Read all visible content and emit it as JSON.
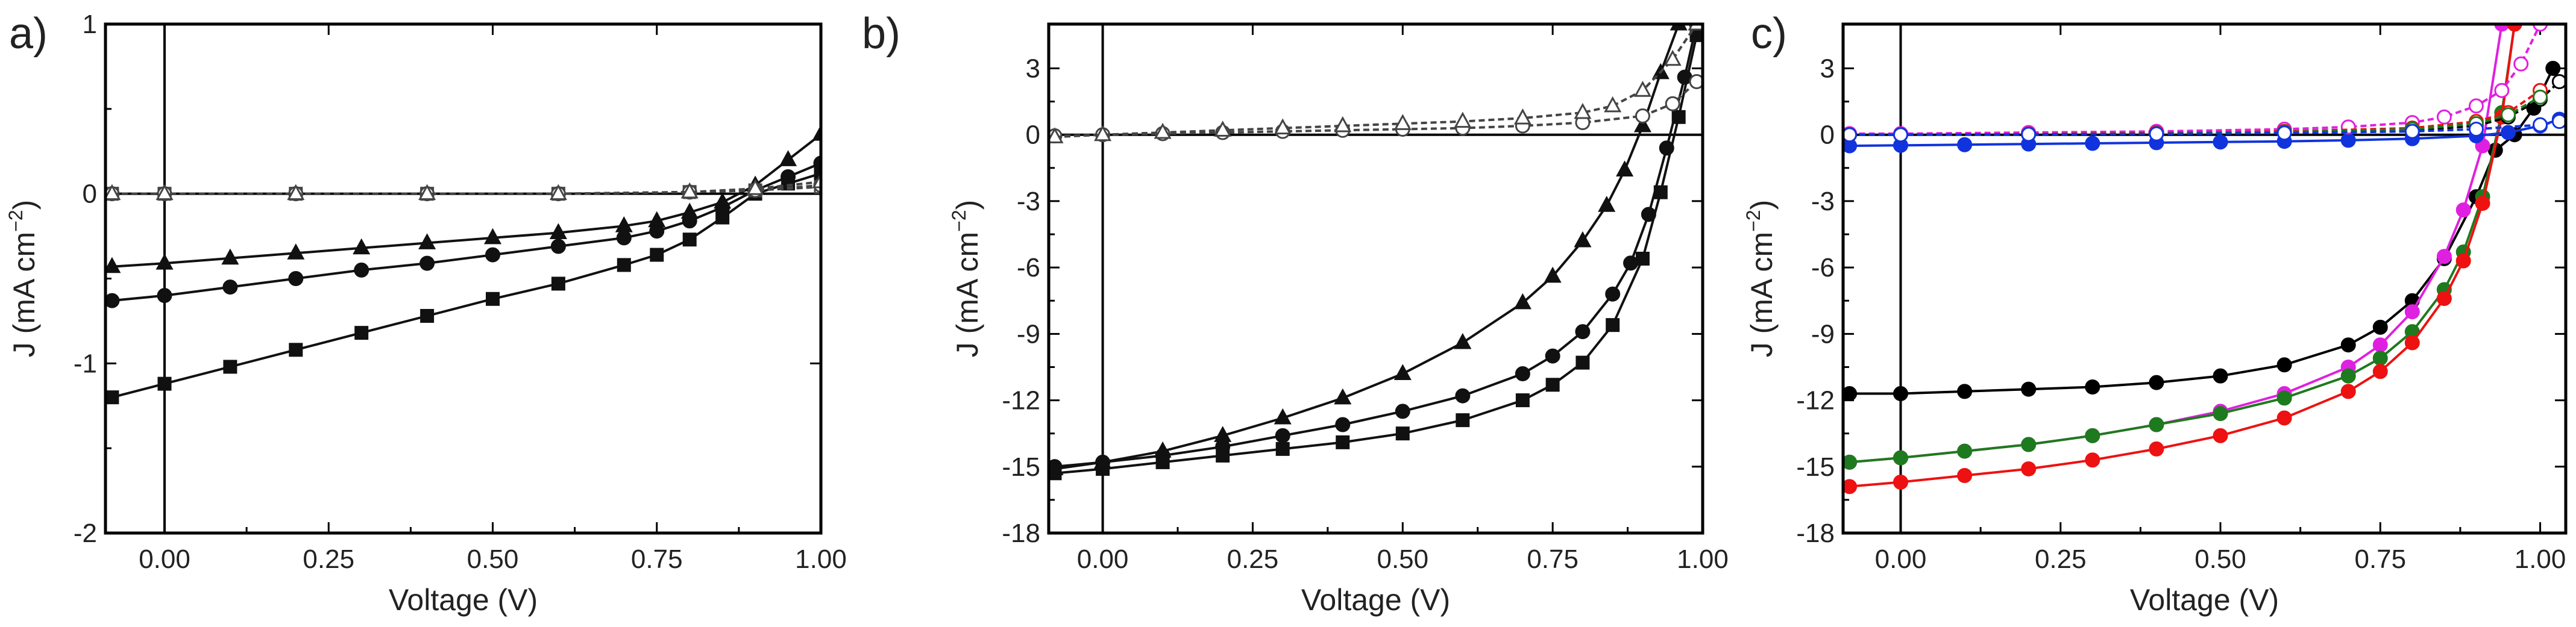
{
  "chart_data": [
    {
      "type": "line",
      "panel_label": "a)",
      "xlabel": "Voltage (V)",
      "ylabel": "J (mA cm",
      "ylabel_sup": "−2",
      "ylabel_close": ")",
      "xlim": [
        -0.09,
        1.0
      ],
      "ylim": [
        -2,
        1
      ],
      "xticks": [
        0.0,
        0.25,
        0.5,
        0.75,
        1.0
      ],
      "xtick_labels": [
        "0.00",
        "0.25",
        "0.50",
        "0.75",
        "1.00"
      ],
      "yticks": [
        -2,
        -1,
        0,
        1
      ],
      "ytick_labels": [
        "-2",
        "-1",
        "0",
        "1"
      ],
      "series": [
        {
          "name": "square-light",
          "marker": "square",
          "filled": true,
          "color": "#111111",
          "x": [
            -0.08,
            0.0,
            0.1,
            0.2,
            0.3,
            0.4,
            0.5,
            0.6,
            0.7,
            0.75,
            0.8,
            0.85,
            0.9,
            0.95,
            1.0
          ],
          "y": [
            -1.2,
            -1.12,
            -1.02,
            -0.92,
            -0.82,
            -0.72,
            -0.62,
            -0.53,
            -0.42,
            -0.36,
            -0.27,
            -0.14,
            0.0,
            0.06,
            0.12
          ]
        },
        {
          "name": "circle-light",
          "marker": "circle",
          "filled": true,
          "color": "#111111",
          "x": [
            -0.08,
            0.0,
            0.1,
            0.2,
            0.3,
            0.4,
            0.5,
            0.6,
            0.7,
            0.75,
            0.8,
            0.85,
            0.9,
            0.95,
            1.0
          ],
          "y": [
            -0.63,
            -0.6,
            -0.55,
            -0.5,
            -0.45,
            -0.41,
            -0.36,
            -0.31,
            -0.26,
            -0.22,
            -0.16,
            -0.08,
            0.02,
            0.1,
            0.18
          ]
        },
        {
          "name": "triangle-light",
          "marker": "triangle",
          "filled": true,
          "color": "#111111",
          "x": [
            -0.08,
            0.0,
            0.1,
            0.2,
            0.3,
            0.4,
            0.5,
            0.6,
            0.7,
            0.75,
            0.8,
            0.85,
            0.9,
            0.95,
            1.0
          ],
          "y": [
            -0.43,
            -0.41,
            -0.38,
            -0.35,
            -0.32,
            -0.29,
            -0.26,
            -0.23,
            -0.19,
            -0.16,
            -0.11,
            -0.05,
            0.05,
            0.2,
            0.35
          ]
        },
        {
          "name": "square-dark",
          "marker": "square",
          "filled": false,
          "color": "#444444",
          "x": [
            -0.08,
            0.0,
            0.2,
            0.4,
            0.6,
            0.8,
            0.9,
            1.0
          ],
          "y": [
            0.0,
            0.0,
            0.0,
            0.0,
            0.0,
            0.01,
            0.02,
            0.04
          ]
        },
        {
          "name": "circle-dark",
          "marker": "circle",
          "filled": false,
          "color": "#444444",
          "x": [
            -0.08,
            0.0,
            0.2,
            0.4,
            0.6,
            0.8,
            0.9,
            1.0
          ],
          "y": [
            0.0,
            0.0,
            0.0,
            0.0,
            0.0,
            0.01,
            0.02,
            0.05
          ]
        },
        {
          "name": "triangle-dark",
          "marker": "triangle",
          "filled": false,
          "color": "#444444",
          "x": [
            -0.08,
            0.0,
            0.2,
            0.4,
            0.6,
            0.8,
            0.9,
            1.0
          ],
          "y": [
            0.0,
            0.0,
            0.0,
            0.0,
            0.0,
            0.01,
            0.03,
            0.07
          ]
        }
      ]
    },
    {
      "type": "line",
      "panel_label": "b)",
      "xlabel": "Voltage (V)",
      "ylabel": "J (mA cm",
      "ylabel_sup": "−2",
      "ylabel_close": ")",
      "xlim": [
        -0.09,
        1.0
      ],
      "ylim": [
        -18,
        5
      ],
      "xticks": [
        0.0,
        0.25,
        0.5,
        0.75,
        1.0
      ],
      "xtick_labels": [
        "0.00",
        "0.25",
        "0.50",
        "0.75",
        "1.00"
      ],
      "yticks": [
        -18,
        -15,
        -12,
        -9,
        -6,
        -3,
        0,
        3
      ],
      "ytick_labels": [
        "-18",
        "-15",
        "-12",
        "-9",
        "-6",
        "-3",
        "0",
        "3"
      ],
      "series": [
        {
          "name": "square-light",
          "marker": "square",
          "filled": true,
          "color": "#111111",
          "x": [
            -0.08,
            0.0,
            0.1,
            0.2,
            0.3,
            0.4,
            0.5,
            0.6,
            0.7,
            0.75,
            0.8,
            0.85,
            0.9,
            0.93,
            0.96,
            0.99
          ],
          "y": [
            -15.3,
            -15.1,
            -14.8,
            -14.5,
            -14.2,
            -13.9,
            -13.5,
            -12.9,
            -12.0,
            -11.3,
            -10.3,
            -8.6,
            -5.6,
            -2.6,
            0.8,
            4.5
          ]
        },
        {
          "name": "circle-light",
          "marker": "circle",
          "filled": true,
          "color": "#111111",
          "x": [
            -0.08,
            0.0,
            0.1,
            0.2,
            0.3,
            0.4,
            0.5,
            0.6,
            0.7,
            0.75,
            0.8,
            0.85,
            0.88,
            0.91,
            0.94,
            0.97,
            0.99
          ],
          "y": [
            -15.0,
            -14.8,
            -14.5,
            -14.1,
            -13.6,
            -13.1,
            -12.5,
            -11.8,
            -10.8,
            -10.0,
            -8.9,
            -7.2,
            -5.8,
            -3.6,
            -0.6,
            2.6,
            5.0
          ]
        },
        {
          "name": "triangle-light",
          "marker": "triangle",
          "filled": true,
          "color": "#111111",
          "x": [
            -0.08,
            0.0,
            0.1,
            0.2,
            0.3,
            0.4,
            0.5,
            0.6,
            0.7,
            0.75,
            0.8,
            0.84,
            0.87,
            0.9,
            0.93,
            0.96
          ],
          "y": [
            -15.1,
            -14.8,
            -14.3,
            -13.6,
            -12.8,
            -11.9,
            -10.8,
            -9.4,
            -7.6,
            -6.4,
            -4.8,
            -3.2,
            -1.6,
            0.4,
            2.8,
            5.0
          ]
        },
        {
          "name": "circle-dark",
          "marker": "circle",
          "filled": false,
          "color": "#444444",
          "x": [
            -0.08,
            0.0,
            0.1,
            0.2,
            0.3,
            0.4,
            0.5,
            0.6,
            0.7,
            0.8,
            0.9,
            0.95,
            0.99
          ],
          "y": [
            -0.05,
            0.0,
            0.05,
            0.1,
            0.15,
            0.2,
            0.25,
            0.3,
            0.4,
            0.55,
            0.85,
            1.4,
            2.4
          ]
        },
        {
          "name": "triangle-dark",
          "marker": "triangle",
          "filled": false,
          "color": "#444444",
          "x": [
            -0.08,
            0.0,
            0.1,
            0.2,
            0.3,
            0.4,
            0.5,
            0.6,
            0.7,
            0.8,
            0.85,
            0.9,
            0.95,
            0.99
          ],
          "y": [
            -0.1,
            0.0,
            0.1,
            0.2,
            0.3,
            0.4,
            0.5,
            0.6,
            0.75,
            1.0,
            1.3,
            2.0,
            3.4,
            5.0
          ]
        }
      ]
    },
    {
      "type": "line",
      "panel_label": "c)",
      "xlabel": "Voltage (V)",
      "ylabel": "J (mA cm",
      "ylabel_sup": "−2",
      "ylabel_close": ")",
      "xlim": [
        -0.09,
        1.04
      ],
      "ylim": [
        -18,
        5
      ],
      "xticks": [
        0.0,
        0.25,
        0.5,
        0.75,
        1.0
      ],
      "xtick_labels": [
        "0.00",
        "0.25",
        "0.50",
        "0.75",
        "1.00"
      ],
      "yticks": [
        -18,
        -15,
        -12,
        -9,
        -6,
        -3,
        0,
        3
      ],
      "ytick_labels": [
        "-18",
        "-15",
        "-12",
        "-9",
        "-6",
        "-3",
        "0",
        "3"
      ],
      "series": [
        {
          "name": "black-light",
          "marker": "circle",
          "filled": true,
          "color": "#000000",
          "x": [
            -0.08,
            0.0,
            0.1,
            0.2,
            0.3,
            0.4,
            0.5,
            0.6,
            0.7,
            0.75,
            0.8,
            0.85,
            0.9,
            0.93,
            0.96,
            0.99,
            1.02
          ],
          "y": [
            -11.7,
            -11.7,
            -11.6,
            -11.5,
            -11.4,
            -11.2,
            -10.9,
            -10.4,
            -9.5,
            -8.7,
            -7.5,
            -5.6,
            -2.8,
            -0.7,
            0.0,
            1.2,
            3.0
          ]
        },
        {
          "name": "magenta-light",
          "marker": "circle",
          "filled": true,
          "color": "#e020e0",
          "x": [
            -0.08,
            0.0,
            0.1,
            0.2,
            0.3,
            0.4,
            0.5,
            0.6,
            0.7,
            0.75,
            0.8,
            0.85,
            0.88,
            0.91,
            0.94
          ],
          "y": [
            -14.8,
            -14.6,
            -14.3,
            -14.0,
            -13.6,
            -13.1,
            -12.5,
            -11.7,
            -10.5,
            -9.5,
            -8.0,
            -5.5,
            -3.4,
            -0.5,
            5.0
          ]
        },
        {
          "name": "green-light",
          "marker": "circle",
          "filled": true,
          "color": "#1e7a1e",
          "x": [
            -0.08,
            0.0,
            0.1,
            0.2,
            0.3,
            0.4,
            0.5,
            0.6,
            0.7,
            0.75,
            0.8,
            0.85,
            0.88,
            0.91,
            0.94,
            0.96
          ],
          "y": [
            -14.8,
            -14.6,
            -14.3,
            -14.0,
            -13.6,
            -13.1,
            -12.6,
            -11.9,
            -10.9,
            -10.1,
            -8.9,
            -7.0,
            -5.3,
            -2.8,
            1.0,
            5.0
          ]
        },
        {
          "name": "red-light",
          "marker": "circle",
          "filled": true,
          "color": "#ee1111",
          "x": [
            -0.08,
            0.0,
            0.1,
            0.2,
            0.3,
            0.4,
            0.5,
            0.6,
            0.7,
            0.75,
            0.8,
            0.85,
            0.88,
            0.91,
            0.94,
            0.96
          ],
          "y": [
            -15.9,
            -15.7,
            -15.4,
            -15.1,
            -14.7,
            -14.2,
            -13.6,
            -12.8,
            -11.6,
            -10.7,
            -9.4,
            -7.4,
            -5.7,
            -3.1,
            0.8,
            5.0
          ]
        },
        {
          "name": "blue-light",
          "marker": "circle",
          "filled": true,
          "color": "#1133dd",
          "x": [
            -0.08,
            0.0,
            0.1,
            0.2,
            0.3,
            0.4,
            0.5,
            0.6,
            0.7,
            0.8,
            0.9,
            0.95,
            1.0,
            1.03
          ],
          "y": [
            -0.5,
            -0.48,
            -0.45,
            -0.42,
            -0.39,
            -0.36,
            -0.33,
            -0.3,
            -0.25,
            -0.18,
            -0.05,
            0.1,
            0.4,
            0.7
          ]
        },
        {
          "name": "black-dark",
          "marker": "circle",
          "filled": false,
          "color": "#000000",
          "x": [
            -0.08,
            0.0,
            0.2,
            0.4,
            0.6,
            0.8,
            0.9,
            0.95,
            1.0,
            1.03
          ],
          "y": [
            0.0,
            0.0,
            0.02,
            0.05,
            0.1,
            0.2,
            0.4,
            0.8,
            1.6,
            2.4
          ]
        },
        {
          "name": "magenta-dark",
          "marker": "circle",
          "filled": false,
          "color": "#e020e0",
          "x": [
            -0.08,
            0.0,
            0.2,
            0.4,
            0.6,
            0.7,
            0.8,
            0.85,
            0.9,
            0.94,
            0.97,
            1.0
          ],
          "y": [
            0.05,
            0.05,
            0.1,
            0.15,
            0.25,
            0.35,
            0.55,
            0.8,
            1.3,
            2.0,
            3.2,
            5.0
          ]
        },
        {
          "name": "red-dark",
          "marker": "circle",
          "filled": false,
          "color": "#ee1111",
          "x": [
            -0.08,
            0.0,
            0.2,
            0.4,
            0.6,
            0.8,
            0.9,
            0.95,
            1.0
          ],
          "y": [
            0.0,
            0.0,
            0.03,
            0.08,
            0.15,
            0.3,
            0.6,
            1.0,
            2.0
          ]
        },
        {
          "name": "green-dark",
          "marker": "circle",
          "filled": false,
          "color": "#1e7a1e",
          "x": [
            -0.08,
            0.0,
            0.2,
            0.4,
            0.6,
            0.8,
            0.9,
            0.95,
            1.0
          ],
          "y": [
            0.0,
            0.0,
            0.02,
            0.05,
            0.12,
            0.25,
            0.5,
            0.9,
            1.7
          ]
        },
        {
          "name": "blue-dark",
          "marker": "circle",
          "filled": false,
          "color": "#1133dd",
          "x": [
            -0.08,
            0.0,
            0.2,
            0.4,
            0.6,
            0.8,
            0.9,
            1.0,
            1.03
          ],
          "y": [
            0.0,
            0.0,
            0.02,
            0.04,
            0.08,
            0.15,
            0.25,
            0.45,
            0.6
          ]
        }
      ]
    }
  ]
}
